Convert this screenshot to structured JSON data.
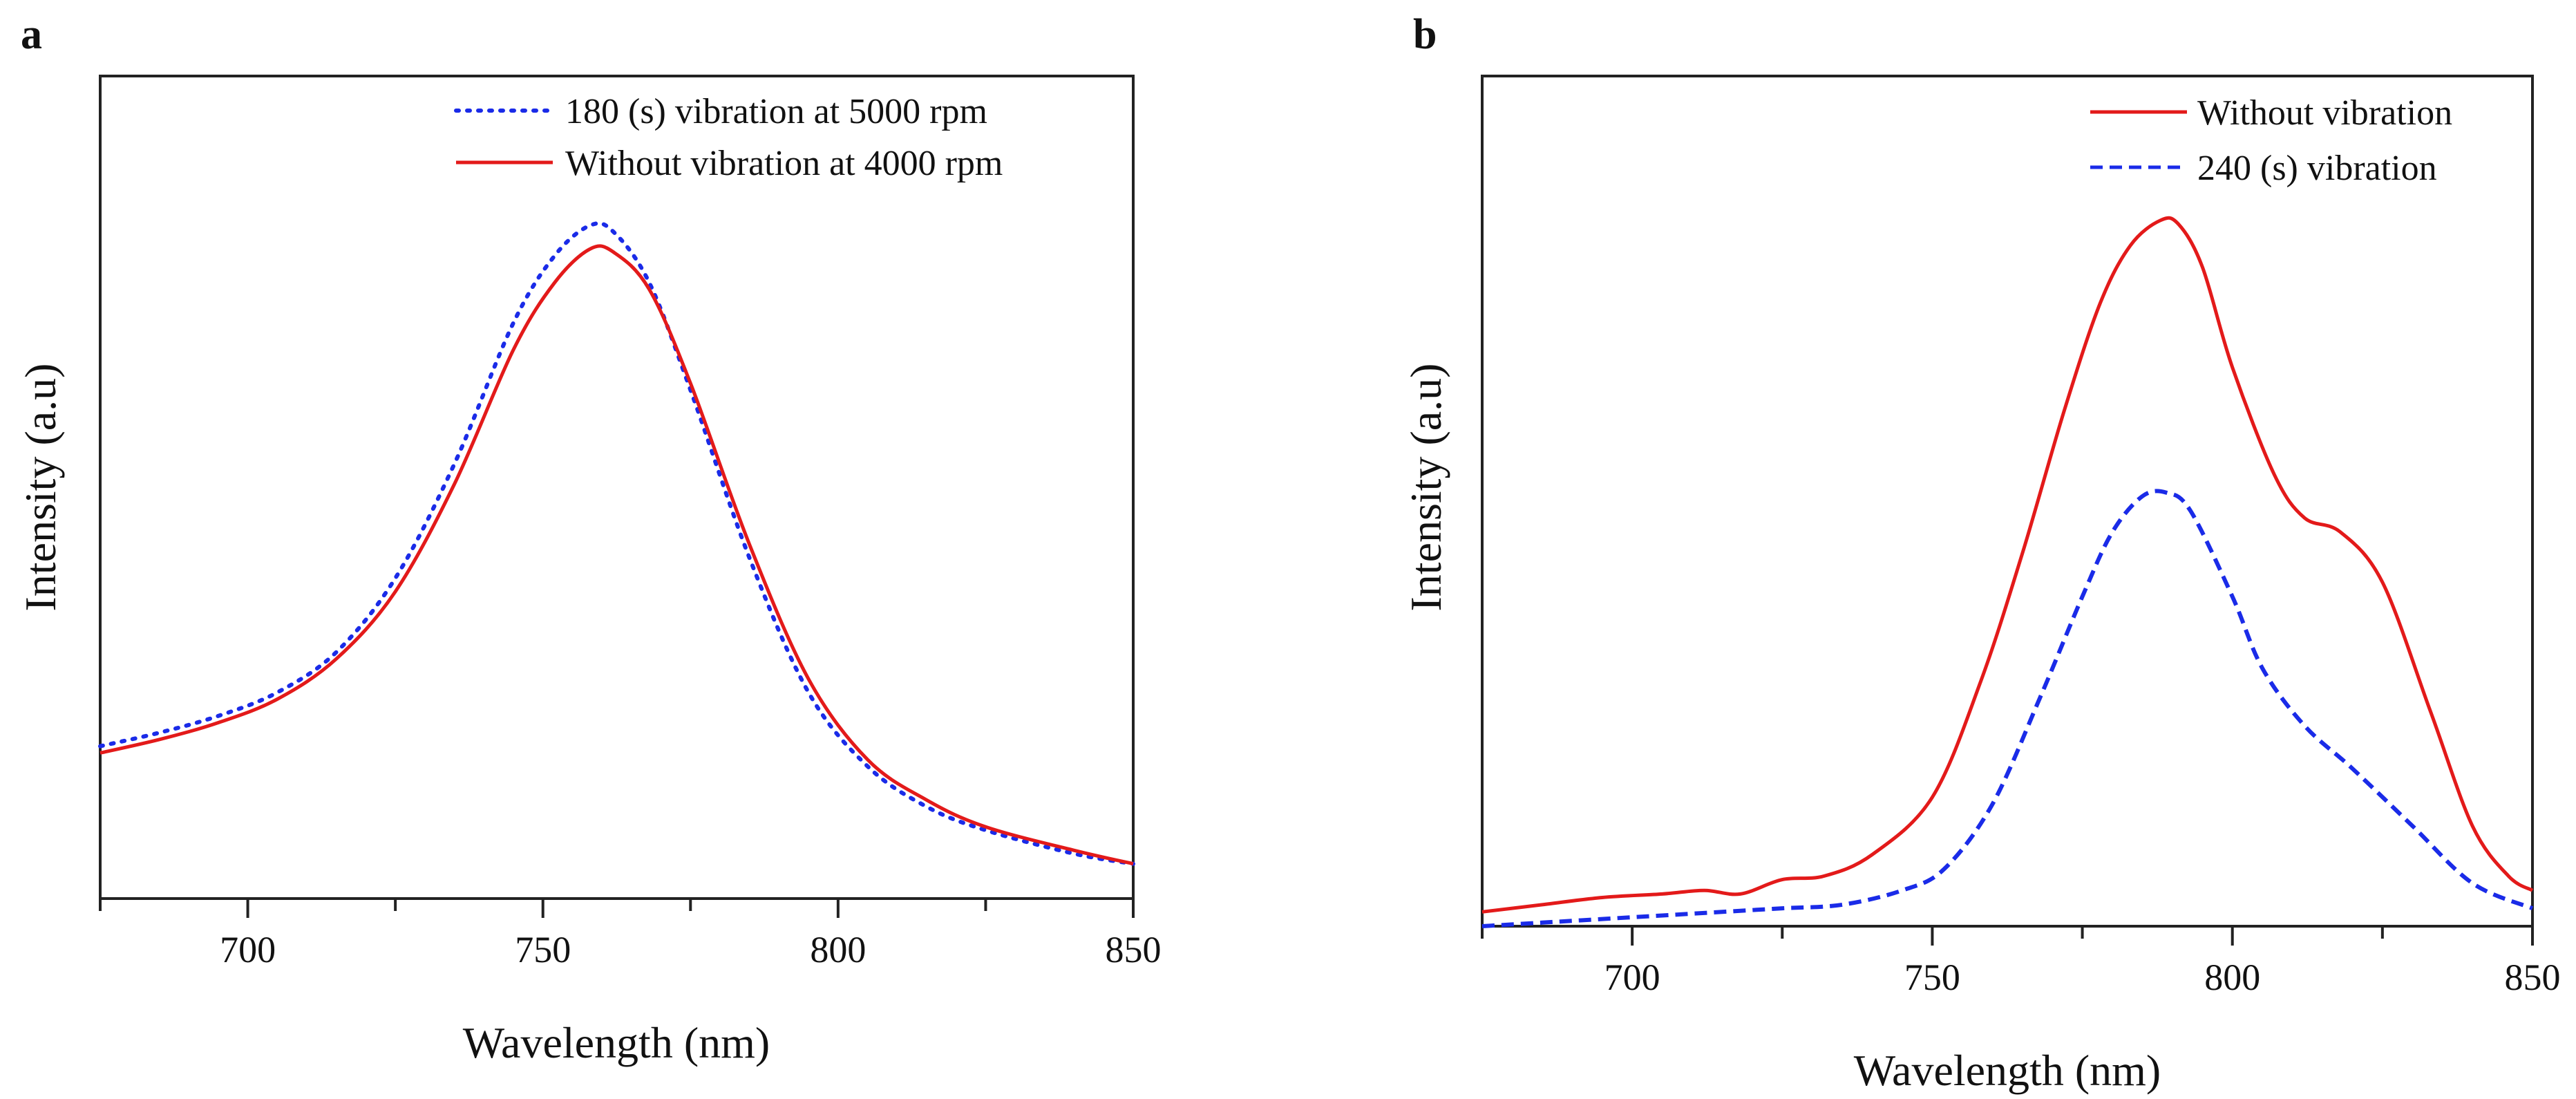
{
  "chart_data": [
    {
      "type": "line",
      "panel": "a",
      "title": "",
      "xlabel": "Wavelength (nm)",
      "ylabel": "Intensity (a.u)",
      "xlim": [
        675,
        850
      ],
      "ylim": [
        0,
        1
      ],
      "xticks": [
        700,
        750,
        800,
        850
      ],
      "xtick_labels": [
        "700",
        "750",
        "800",
        "850"
      ],
      "yticks_shown": false,
      "grid": false,
      "legend_position": "top-right",
      "series": [
        {
          "name": "180 (s) vibration at 5000 rpm",
          "color": "#1a2be8",
          "style": "dotted",
          "x": [
            675,
            685,
            695,
            705,
            715,
            725,
            735,
            745,
            752,
            758,
            762,
            768,
            775,
            785,
            795,
            805,
            815,
            825,
            840,
            850
          ],
          "y": [
            0.19,
            0.21,
            0.235,
            0.27,
            0.33,
            0.44,
            0.61,
            0.82,
            0.92,
            0.965,
            0.955,
            0.88,
            0.72,
            0.47,
            0.27,
            0.16,
            0.1,
            0.065,
            0.03,
            0.015
          ]
        },
        {
          "name": "Without vibration at 4000 rpm",
          "color": "#e31a1a",
          "style": "solid",
          "x": [
            675,
            685,
            695,
            705,
            715,
            725,
            735,
            745,
            752,
            758,
            762,
            768,
            775,
            785,
            795,
            805,
            815,
            825,
            840,
            850
          ],
          "y": [
            0.18,
            0.2,
            0.225,
            0.26,
            0.32,
            0.42,
            0.58,
            0.78,
            0.88,
            0.93,
            0.925,
            0.87,
            0.73,
            0.49,
            0.29,
            0.17,
            0.11,
            0.07,
            0.035,
            0.015
          ]
        }
      ]
    },
    {
      "type": "line",
      "panel": "b",
      "title": "",
      "xlabel": "Wavelength (nm)",
      "ylabel": "Intensity (a.u)",
      "xlim": [
        675,
        850
      ],
      "ylim": [
        0,
        1
      ],
      "xticks": [
        700,
        750,
        800,
        850
      ],
      "xtick_labels": [
        "700",
        "750",
        "800",
        "850"
      ],
      "yticks_shown": false,
      "grid": false,
      "legend_position": "top-right",
      "series": [
        {
          "name": "Without vibration",
          "color": "#e31a1a",
          "style": "solid",
          "x": [
            675,
            685,
            695,
            705,
            712,
            718,
            725,
            732,
            740,
            750,
            758,
            765,
            772,
            778,
            783,
            788,
            791,
            795,
            800,
            807,
            812,
            818,
            825,
            833,
            840,
            846,
            850
          ],
          "y": [
            0.02,
            0.03,
            0.04,
            0.045,
            0.05,
            0.045,
            0.065,
            0.07,
            0.1,
            0.18,
            0.34,
            0.52,
            0.72,
            0.87,
            0.95,
            0.985,
            0.98,
            0.92,
            0.78,
            0.63,
            0.57,
            0.55,
            0.48,
            0.3,
            0.14,
            0.07,
            0.05
          ]
        },
        {
          "name": "240 (s) vibration",
          "color": "#1a2be8",
          "style": "dashed",
          "x": [
            675,
            685,
            695,
            705,
            715,
            725,
            735,
            745,
            752,
            760,
            768,
            775,
            780,
            785,
            789,
            793,
            800,
            805,
            812,
            820,
            830,
            840,
            850
          ],
          "y": [
            0.0,
            0.005,
            0.01,
            0.015,
            0.02,
            0.025,
            0.03,
            0.05,
            0.08,
            0.17,
            0.32,
            0.46,
            0.55,
            0.6,
            0.605,
            0.58,
            0.46,
            0.36,
            0.28,
            0.22,
            0.14,
            0.06,
            0.025
          ]
        }
      ]
    }
  ]
}
